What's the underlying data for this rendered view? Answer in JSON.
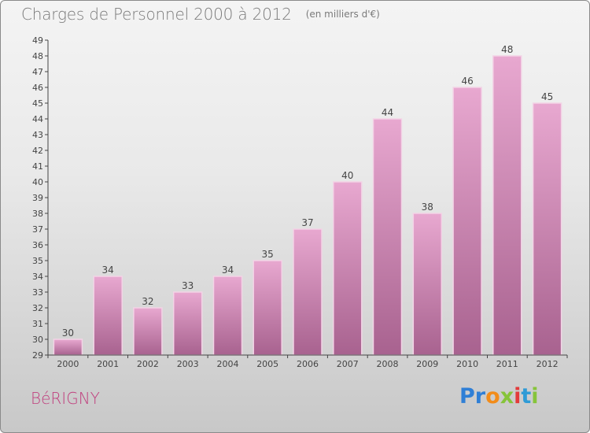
{
  "title": "Charges de Personnel 2000 à 2012",
  "unit_note": "(en milliers d'€)",
  "commune": "BéRIGNY",
  "brand": "Proxiti",
  "colors": {
    "bar_light": "#e8a8d0",
    "bar_dark": "#a8628f",
    "axis": "#444444",
    "commune": "#c0407e",
    "brand_letters": [
      "#2f7fd6",
      "#2f7fd6",
      "#f28c1a",
      "#86c43a",
      "#e33b3b",
      "#2f9bd6",
      "#86c43a"
    ]
  },
  "chart_data": {
    "type": "bar",
    "title": "Charges de Personnel 2000 à 2012",
    "xlabel": "",
    "ylabel": "",
    "categories": [
      "2000",
      "2001",
      "2002",
      "2003",
      "2004",
      "2005",
      "2006",
      "2007",
      "2008",
      "2009",
      "2010",
      "2011",
      "2012"
    ],
    "values": [
      30,
      34,
      32,
      33,
      34,
      35,
      37,
      40,
      44,
      38,
      46,
      48,
      45
    ],
    "ylim": [
      29,
      49
    ],
    "yticks": [
      29,
      30,
      31,
      32,
      33,
      34,
      35,
      36,
      37,
      38,
      39,
      40,
      41,
      42,
      43,
      44,
      45,
      46,
      47,
      48,
      49
    ],
    "grid": false,
    "data_labels": true
  }
}
